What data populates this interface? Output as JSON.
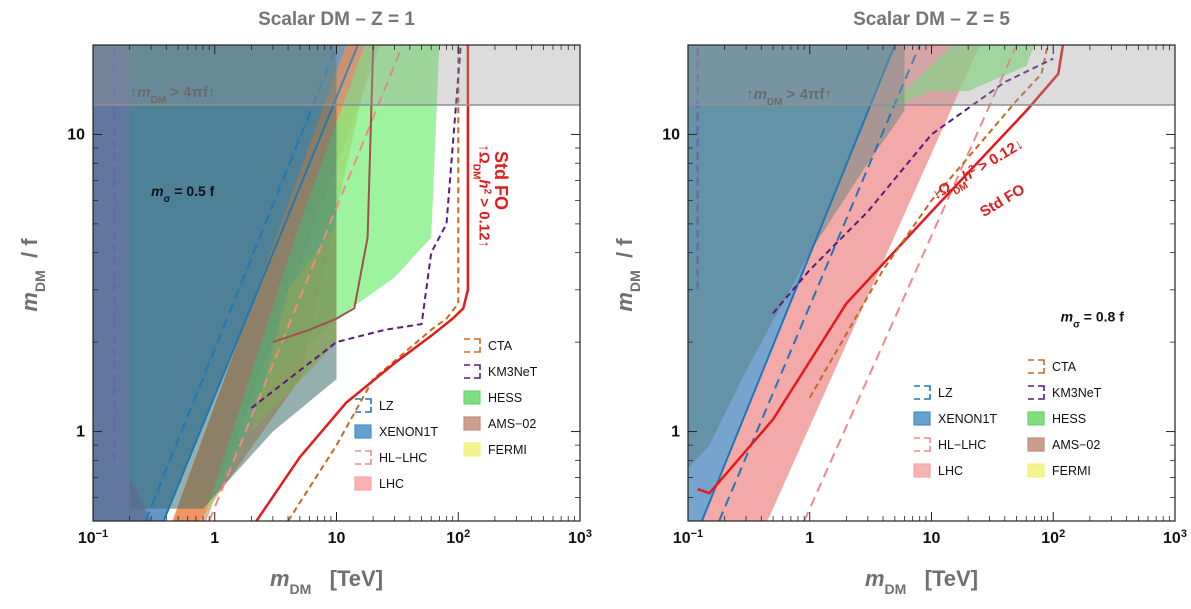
{
  "chart_data": [
    {
      "type": "area",
      "title": "Scalar DM  –  Z = 1",
      "xlabel_main": "m",
      "xlabel_sub": "DM",
      "xlabel_unit": "[TeV]",
      "ylabel_main": "m",
      "ylabel_sub": "DM",
      "ylabel_unit": "/ f",
      "x_scale": "log",
      "y_scale": "log",
      "xlim": [
        0.1,
        1000
      ],
      "ylim": [
        0.5,
        20
      ],
      "x_ticks": [
        {
          "v": 0.1,
          "base": "10",
          "exp": "−1"
        },
        {
          "v": 1,
          "text": "1"
        },
        {
          "v": 10,
          "text": "10"
        },
        {
          "v": 100,
          "base": "10",
          "exp": "2"
        },
        {
          "v": 1000,
          "base": "10",
          "exp": "3"
        }
      ],
      "y_ticks": [
        {
          "v": 1,
          "text": "1"
        },
        {
          "v": 10,
          "text": "10"
        }
      ],
      "annotations": {
        "bound": "↑m",
        "bound_sub": "DM",
        "bound_rest": " > 4πf↑",
        "msigma": "m",
        "msigma_sub": "σ",
        "msigma_rest": " = 0.5 f",
        "stdfo": "Std FO",
        "relic": "↑Ω",
        "relic_sub": "DM",
        "relic_h": "h",
        "relic_exp": "2",
        "relic_rest": " > 0.12↑"
      },
      "regions": {
        "bound_y": 12.566,
        "lz_slope_line": [
          [
            0.27,
            0.5
          ],
          [
            20,
            40
          ]
        ],
        "xenon_line": [
          [
            0.38,
            0.5
          ],
          [
            15,
            20
          ]
        ],
        "lhc_band": [
          [
            0.45,
            0.5
          ],
          [
            0.85,
            0.5
          ],
          [
            23,
            20
          ],
          [
            12,
            20
          ]
        ],
        "hllhc_line": [
          [
            0.9,
            0.5
          ],
          [
            35,
            20
          ]
        ],
        "stdfo_curve": [
          [
            2.2,
            0.5
          ],
          [
            5,
            0.82
          ],
          [
            12,
            1.25
          ],
          [
            30,
            1.7
          ],
          [
            60,
            2.1
          ],
          [
            90,
            2.4
          ],
          [
            110,
            2.6
          ],
          [
            120,
            3
          ],
          [
            120,
            20
          ]
        ],
        "hess_region": [
          [
            0.8,
            0.5
          ],
          [
            3,
            1.5
          ],
          [
            10,
            2.4
          ],
          [
            30,
            3.3
          ],
          [
            60,
            4.5
          ],
          [
            70,
            20
          ],
          [
            17,
            20
          ],
          [
            5,
            5
          ]
        ],
        "fermi_region": [
          [
            2,
            1
          ],
          [
            10,
            2
          ],
          [
            10,
            5
          ],
          [
            4,
            3
          ]
        ],
        "ams_curve": [
          [
            3,
            2
          ],
          [
            6,
            2.2
          ],
          [
            10,
            2.4
          ],
          [
            14,
            2.6
          ],
          [
            18,
            4.5
          ],
          [
            20,
            20
          ]
        ],
        "km3net_curve": [
          [
            2,
            1.2
          ],
          [
            10,
            2
          ],
          [
            25,
            2.2
          ],
          [
            50,
            2.3
          ],
          [
            60,
            4
          ],
          [
            80,
            5
          ],
          [
            105,
            20
          ]
        ],
        "cta_curve": [
          [
            4,
            0.5
          ],
          [
            10,
            0.9
          ],
          [
            20,
            1.5
          ],
          [
            60,
            2.2
          ],
          [
            80,
            2.4
          ],
          [
            100,
            2.7
          ],
          [
            100,
            20
          ]
        ],
        "exp_shade_left": [
          [
            0.1,
            0.5
          ],
          [
            0.1,
            20
          ],
          [
            0.2,
            20
          ],
          [
            0.2,
            0.7
          ],
          [
            0.3,
            0.5
          ]
        ]
      },
      "legend": {
        "left": [
          {
            "label": "LZ",
            "style": "dashed",
            "color": "#1f77b4"
          },
          {
            "label": "XENON1T",
            "style": "fill",
            "color": "#4a90c8"
          },
          {
            "label": "HL−LHC",
            "style": "dashed",
            "color": "#ef8a8a"
          },
          {
            "label": "LHC",
            "style": "fill",
            "color": "#f7a5a5"
          }
        ],
        "right": [
          {
            "label": "CTA",
            "style": "dashed",
            "color": "#c46a1e"
          },
          {
            "label": "KM3NeT",
            "style": "dashed",
            "color": "#5b1a7a"
          },
          {
            "label": "HESS",
            "style": "fill",
            "color": "#6ad86a"
          },
          {
            "label": "AMS−02",
            "style": "fill",
            "color": "#c48c7a"
          },
          {
            "label": "FERMI",
            "style": "fill",
            "color": "#f2f27a"
          }
        ]
      }
    },
    {
      "type": "area",
      "title": "Scalar DM  –  Z = 5",
      "xlabel_main": "m",
      "xlabel_sub": "DM",
      "xlabel_unit": "[TeV]",
      "ylabel_main": "m",
      "ylabel_sub": "DM",
      "ylabel_unit": "/ f",
      "x_scale": "log",
      "y_scale": "log",
      "xlim": [
        0.1,
        1000
      ],
      "ylim": [
        0.5,
        20
      ],
      "x_ticks": [
        {
          "v": 0.1,
          "base": "10",
          "exp": "−1"
        },
        {
          "v": 1,
          "text": "1"
        },
        {
          "v": 10,
          "text": "10"
        },
        {
          "v": 100,
          "base": "10",
          "exp": "2"
        },
        {
          "v": 1000,
          "base": "10",
          "exp": "3"
        }
      ],
      "y_ticks": [
        {
          "v": 1,
          "text": "1"
        },
        {
          "v": 10,
          "text": "10"
        }
      ],
      "annotations": {
        "bound": "↑m",
        "bound_sub": "DM",
        "bound_rest": " > 4πf↑",
        "msigma": "m",
        "msigma_sub": "σ",
        "msigma_rest": " = 0.8 f",
        "stdfo": "Std FO",
        "relic": "↓Ω",
        "relic_sub": "DM",
        "relic_h": "h",
        "relic_exp": "2",
        "relic_rest": " > 0.12↓"
      },
      "regions": {
        "bound_y": 12.566
      },
      "legend": {
        "left": [
          {
            "label": "LZ",
            "style": "dashed",
            "color": "#1f77b4"
          },
          {
            "label": "XENON1T",
            "style": "fill",
            "color": "#4a90c8"
          },
          {
            "label": "HL−LHC",
            "style": "dashed",
            "color": "#ef8a8a"
          },
          {
            "label": "LHC",
            "style": "fill",
            "color": "#f7a5a5"
          }
        ],
        "right": [
          {
            "label": "CTA",
            "style": "dashed",
            "color": "#c46a1e"
          },
          {
            "label": "KM3NeT",
            "style": "dashed",
            "color": "#5b1a7a"
          },
          {
            "label": "HESS",
            "style": "fill",
            "color": "#6ad86a"
          },
          {
            "label": "AMS−02",
            "style": "fill",
            "color": "#c48c7a"
          },
          {
            "label": "FERMI",
            "style": "fill",
            "color": "#f2f27a"
          }
        ]
      }
    }
  ]
}
